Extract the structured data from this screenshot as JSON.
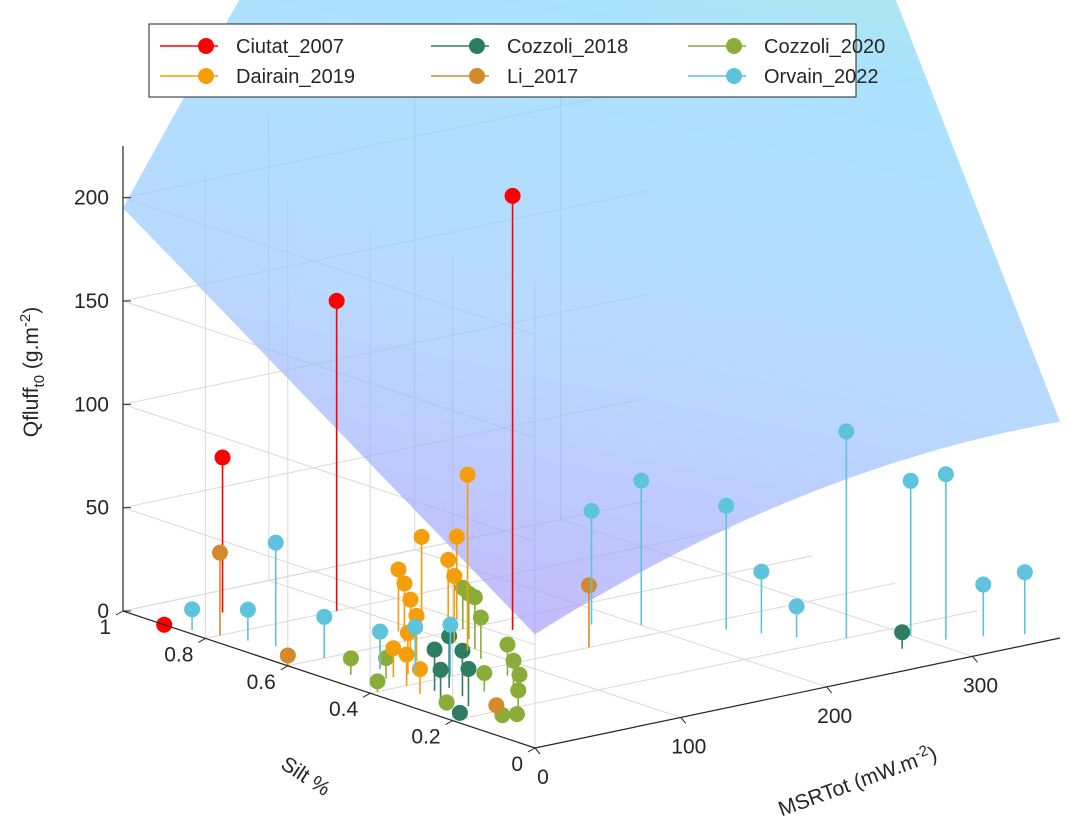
{
  "chart_data": {
    "type": "scatter",
    "subtype": "3d-stem-scatter-with-fitted-surface",
    "axes": {
      "x": {
        "label": "MSRTot (mW.m",
        "label_sup": "-2",
        "label_end": ")",
        "ticks": [
          0,
          100,
          200,
          300
        ],
        "lim": [
          0,
          360
        ]
      },
      "y": {
        "label": "Silt %",
        "ticks": [
          0,
          0.2,
          0.4,
          0.6,
          0.8,
          1
        ],
        "tick_labels": [
          "0",
          "0.2",
          "0.4",
          "0.6",
          "0.8",
          "1"
        ],
        "lim": [
          0,
          1
        ]
      },
      "z": {
        "label": "Qfluff",
        "label_sub": "t0",
        "label_mid": " (g.m",
        "label_sup": "-2",
        "label_end": ")",
        "ticks": [
          0,
          50,
          100,
          150,
          200
        ],
        "lim": [
          0,
          225
        ]
      }
    },
    "grid": true,
    "legend_position": "top",
    "surface": {
      "description": "fitted surface increasing with MSRTot and Silt %",
      "colormap": [
        "#a78bfa",
        "#93c5fd",
        "#7dd3fc",
        "#86efac",
        "#fde68a"
      ],
      "opacity": 0.65
    },
    "series": [
      {
        "name": "Ciutat_2007",
        "color": "#ff0000",
        "points": [
          [
            0,
            0.9,
            0
          ],
          [
            40,
            0.9,
            75
          ],
          [
            90,
            0.8,
            150
          ],
          [
            140,
            0.55,
            210
          ]
        ]
      },
      {
        "name": "Cozzoli_2018",
        "color": "#2e7d63",
        "points": [
          [
            5,
            0.2,
            3
          ],
          [
            20,
            0.3,
            15
          ],
          [
            25,
            0.25,
            18
          ],
          [
            30,
            0.35,
            20
          ],
          [
            35,
            0.3,
            22
          ],
          [
            40,
            0.35,
            25
          ],
          [
            280,
            0.1,
            8
          ]
        ]
      },
      {
        "name": "Cozzoli_2020",
        "color": "#8aad3a",
        "points": [
          [
            5,
            0.4,
            5
          ],
          [
            10,
            0.25,
            4
          ],
          [
            20,
            0.15,
            3
          ],
          [
            30,
            0.15,
            2
          ],
          [
            45,
            0.2,
            8
          ],
          [
            60,
            0.25,
            10
          ],
          [
            70,
            0.3,
            12
          ],
          [
            80,
            0.35,
            15
          ],
          [
            90,
            0.45,
            20
          ],
          [
            100,
            0.5,
            25
          ],
          [
            110,
            0.55,
            22
          ],
          [
            120,
            0.6,
            20
          ],
          [
            15,
            0.5,
            8
          ],
          [
            25,
            0.45,
            10
          ],
          [
            50,
            0.3,
            9
          ]
        ]
      },
      {
        "name": "Dairain_2019",
        "color": "#f59e0b",
        "points": [
          [
            20,
            0.35,
            12
          ],
          [
            25,
            0.4,
            15
          ],
          [
            30,
            0.45,
            14
          ],
          [
            35,
            0.5,
            18
          ],
          [
            40,
            0.45,
            20
          ],
          [
            60,
            0.5,
            22
          ],
          [
            70,
            0.55,
            25
          ],
          [
            80,
            0.6,
            28
          ],
          [
            90,
            0.65,
            30
          ],
          [
            100,
            0.55,
            32
          ],
          [
            110,
            0.6,
            35
          ],
          [
            120,
            0.7,
            38
          ],
          [
            130,
            0.65,
            40
          ],
          [
            95,
            0.5,
            85
          ]
        ]
      },
      {
        "name": "Li_2017",
        "color": "#d48a2c",
        "points": [
          [
            0,
            0.6,
            5
          ],
          [
            10,
            0.8,
            40
          ],
          [
            30,
            0.2,
            3
          ],
          [
            150,
            0.4,
            30
          ]
        ]
      },
      {
        "name": "Orvain_2022",
        "color": "#5ec3dc",
        "points": [
          [
            5,
            0.85,
            10
          ],
          [
            15,
            0.75,
            15
          ],
          [
            20,
            0.7,
            50
          ],
          [
            25,
            0.6,
            20
          ],
          [
            35,
            0.5,
            18
          ],
          [
            180,
            0.5,
            55
          ],
          [
            200,
            0.45,
            70
          ],
          [
            230,
            0.35,
            60
          ],
          [
            240,
            0.3,
            30
          ],
          [
            250,
            0.25,
            15
          ],
          [
            270,
            0.2,
            100
          ],
          [
            300,
            0.15,
            75
          ],
          [
            310,
            0.1,
            80
          ],
          [
            330,
            0.08,
            25
          ],
          [
            350,
            0.05,
            30
          ],
          [
            45,
            0.45,
            22
          ],
          [
            55,
            0.4,
            25
          ]
        ]
      }
    ]
  }
}
